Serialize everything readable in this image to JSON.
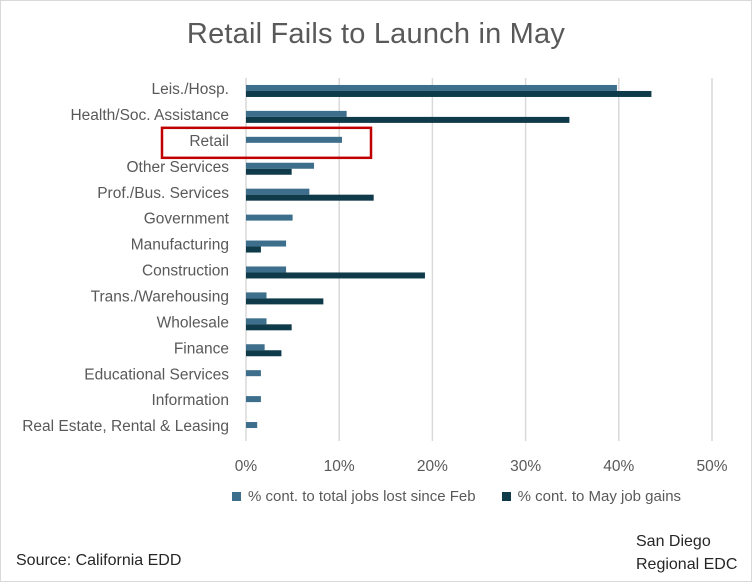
{
  "chart_data": {
    "type": "bar",
    "orientation": "horizontal",
    "title": "Retail Fails to Launch in May",
    "categories": [
      "Leis./Hosp.",
      "Health/Soc. Assistance",
      "Retail",
      "Other Services",
      "Prof./Bus. Services",
      "Government",
      "Manufacturing",
      "Construction",
      "Trans./Warehousing",
      "Wholesale",
      "Finance",
      "Educational Services",
      "Information",
      "Real Estate, Rental & Leasing"
    ],
    "series": [
      {
        "name": "% cont. to total jobs lost since Feb",
        "color": "#3d6e8c",
        "values": [
          39.8,
          10.8,
          10.3,
          7.3,
          6.8,
          5.0,
          4.3,
          4.3,
          2.2,
          2.2,
          2.0,
          1.6,
          1.6,
          1.2
        ]
      },
      {
        "name": "% cont. to May job gains",
        "color": "#0e3a4a",
        "values": [
          43.5,
          34.7,
          0,
          4.9,
          13.7,
          0,
          1.6,
          19.2,
          8.3,
          4.9,
          3.8,
          0,
          0,
          0
        ]
      }
    ],
    "xlim": [
      0,
      50
    ],
    "x_ticks": [
      "0%",
      "10%",
      "20%",
      "30%",
      "40%",
      "50%"
    ],
    "tick_values": [
      0,
      10,
      20,
      30,
      40,
      50
    ],
    "grid": true,
    "legend_position": "bottom",
    "highlight_category": "Retail",
    "highlight_color": "#c00000",
    "gridline_color": "#d9d9d9"
  },
  "footer": {
    "source": "Source: California EDD",
    "credit_line1": "San Diego",
    "credit_line2": "Regional EDC"
  }
}
